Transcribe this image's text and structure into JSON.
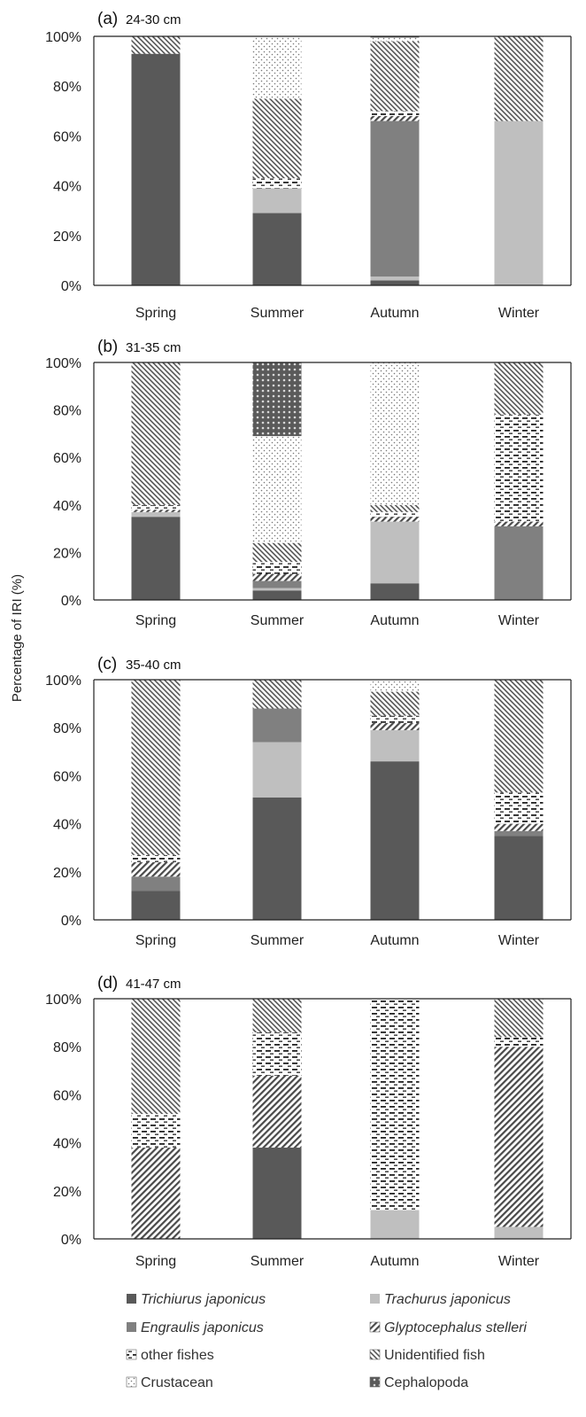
{
  "chart_data": {
    "type": "bar",
    "stacked": true,
    "ylabel": "Percentage of IRI (%)",
    "categories": [
      "Spring",
      "Summer",
      "Autumn",
      "Winter"
    ],
    "yticks": [
      "0%",
      "20%",
      "40%",
      "60%",
      "80%",
      "100%"
    ],
    "ylim": [
      0,
      100
    ],
    "legend": [
      {
        "name": "Trichiurus japonicus",
        "italic": true,
        "pattern": "solid-dark",
        "color": "#595959"
      },
      {
        "name": "Trachurus japonicus",
        "italic": true,
        "pattern": "solid-light",
        "color": "#bfbfbf"
      },
      {
        "name": "Engraulis japonicus",
        "italic": true,
        "pattern": "solid-mid",
        "color": "#808080"
      },
      {
        "name": "Glyptocephalus stelleri",
        "italic": true,
        "pattern": "diag-dense",
        "color": "#555555"
      },
      {
        "name": "other fishes",
        "italic": false,
        "pattern": "dashes",
        "color": "#333333"
      },
      {
        "name": "Unidentified fish",
        "italic": false,
        "pattern": "diag-fine",
        "color": "#666666"
      },
      {
        "name": "Crustacean",
        "italic": false,
        "pattern": "dots",
        "color": "#999999"
      },
      {
        "name": "Cephalopoda",
        "italic": false,
        "pattern": "checker",
        "color": "#555555"
      }
    ],
    "panels": [
      {
        "label": "(a)",
        "sublabel": "24-30 cm",
        "series": [
          {
            "name": "Trichiurus japonicus",
            "values": [
              93,
              29,
              2,
              0
            ]
          },
          {
            "name": "Trachurus japonicus",
            "values": [
              0,
              10,
              1.5,
              66
            ]
          },
          {
            "name": "Engraulis japonicus",
            "values": [
              0,
              0,
              62.5,
              0
            ]
          },
          {
            "name": "Glyptocephalus stelleri",
            "values": [
              0,
              0,
              2,
              0
            ]
          },
          {
            "name": "other fishes",
            "values": [
              0,
              4,
              2,
              0
            ]
          },
          {
            "name": "Unidentified fish",
            "values": [
              7,
              32,
              28,
              34
            ]
          },
          {
            "name": "Crustacean",
            "values": [
              0,
              25,
              1.5,
              0
            ]
          },
          {
            "name": "Cephalopoda",
            "values": [
              0,
              0,
              0.5,
              0
            ]
          }
        ]
      },
      {
        "label": "(b)",
        "sublabel": "31-35 cm",
        "series": [
          {
            "name": "Trichiurus japonicus",
            "values": [
              35,
              4,
              7,
              0
            ]
          },
          {
            "name": "Trachurus japonicus",
            "values": [
              2,
              1,
              26,
              0
            ]
          },
          {
            "name": "Engraulis japonicus",
            "values": [
              0,
              3,
              0,
              31
            ]
          },
          {
            "name": "Glyptocephalus stelleri",
            "values": [
              1,
              3,
              2,
              2
            ]
          },
          {
            "name": "other fishes",
            "values": [
              2,
              5,
              2,
              45
            ]
          },
          {
            "name": "Unidentified fish",
            "values": [
              60,
              8,
              3,
              22
            ]
          },
          {
            "name": "Crustacean",
            "values": [
              0,
              45,
              60,
              0
            ]
          },
          {
            "name": "Cephalopoda",
            "values": [
              0,
              31,
              0,
              0
            ]
          }
        ]
      },
      {
        "label": "(c)",
        "sublabel": "35-40 cm",
        "series": [
          {
            "name": "Trichiurus japonicus",
            "values": [
              12,
              51,
              66,
              35
            ]
          },
          {
            "name": "Trachurus japonicus",
            "values": [
              0,
              23,
              13,
              0
            ]
          },
          {
            "name": "Engraulis japonicus",
            "values": [
              6,
              14,
              0,
              2
            ]
          },
          {
            "name": "Glyptocephalus stelleri",
            "values": [
              6,
              0,
              3,
              3
            ]
          },
          {
            "name": "other fishes",
            "values": [
              3,
              0,
              3,
              13
            ]
          },
          {
            "name": "Unidentified fish",
            "values": [
              73,
              12,
              10,
              47
            ]
          },
          {
            "name": "Crustacean",
            "values": [
              0,
              0,
              5,
              0
            ]
          },
          {
            "name": "Cephalopoda",
            "values": [
              0,
              0,
              0,
              0
            ]
          }
        ]
      },
      {
        "label": "(d)",
        "sublabel": "41-47 cm",
        "series": [
          {
            "name": "Trichiurus japonicus",
            "values": [
              0,
              38,
              0,
              0
            ]
          },
          {
            "name": "Trachurus japonicus",
            "values": [
              0,
              0,
              12,
              5
            ]
          },
          {
            "name": "Engraulis japonicus",
            "values": [
              0,
              0,
              0,
              0
            ]
          },
          {
            "name": "Glyptocephalus stelleri",
            "values": [
              38,
              30,
              0,
              75
            ]
          },
          {
            "name": "other fishes",
            "values": [
              14,
              18,
              88,
              4
            ]
          },
          {
            "name": "Unidentified fish",
            "values": [
              48,
              14,
              0,
              16
            ]
          },
          {
            "name": "Crustacean",
            "values": [
              0,
              0,
              0,
              0
            ]
          },
          {
            "name": "Cephalopoda",
            "values": [
              0,
              0,
              0,
              0
            ]
          }
        ]
      }
    ]
  }
}
